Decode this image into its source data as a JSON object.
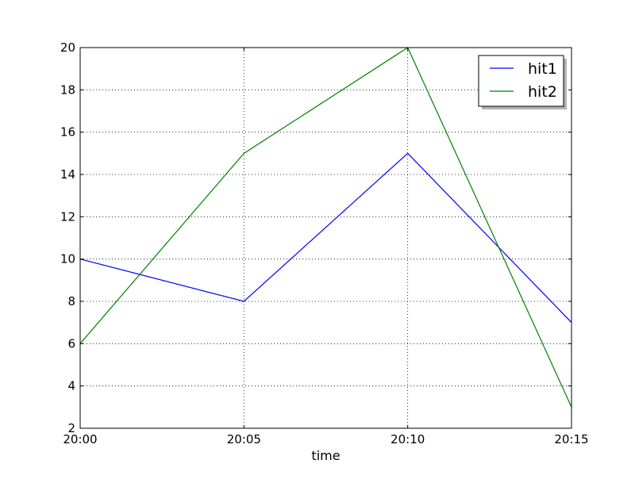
{
  "chart_data": {
    "type": "line",
    "title": "",
    "xlabel": "time",
    "ylabel": "",
    "categories": [
      "20:00",
      "20:05",
      "20:10",
      "20:15"
    ],
    "ylim": [
      2,
      20
    ],
    "yticks": [
      2,
      4,
      6,
      8,
      10,
      12,
      14,
      16,
      18,
      20
    ],
    "grid": true,
    "legend_position": "top-right",
    "series": [
      {
        "name": "hit1",
        "color": "#0000ff",
        "values": [
          10,
          8,
          15,
          7
        ]
      },
      {
        "name": "hit2",
        "color": "#008000",
        "values": [
          6,
          15,
          20,
          3
        ]
      }
    ]
  }
}
